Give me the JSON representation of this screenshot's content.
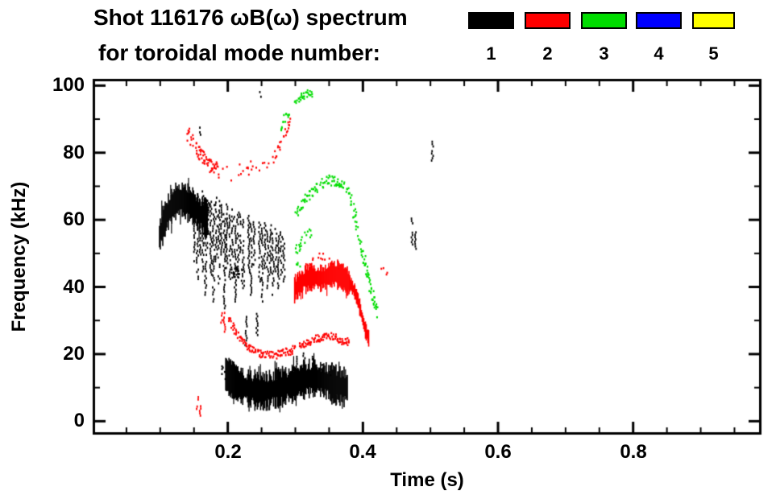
{
  "header": {
    "title_line1": "Shot 116176 ωB(ω) spectrum",
    "title_line2": "for toroidal mode number:"
  },
  "axes": {
    "xlabel": "Time (s)",
    "ylabel": "Frequency (kHz)",
    "xticks": [
      "0.2",
      "0.4",
      "0.6",
      "0.8"
    ],
    "yticks": [
      "100",
      "80",
      "60",
      "40",
      "20",
      "0"
    ]
  },
  "chart_data": {
    "type": "scatter",
    "title": "Shot 116176 ωB(ω) spectrum",
    "subtitle": "for toroidal mode number:",
    "xlabel": "Time (s)",
    "ylabel": "Frequency (kHz)",
    "xlim": [
      0.0,
      0.99
    ],
    "ylim": [
      -4,
      102
    ],
    "xticks": [
      0.2,
      0.4,
      0.6,
      0.8
    ],
    "xminor": 0.05,
    "yticks": [
      0,
      20,
      40,
      60,
      80,
      100
    ],
    "yminor": 10,
    "grid": false,
    "legend_position": "top-right",
    "legend": [
      {
        "label": "1",
        "color": "#000000"
      },
      {
        "label": "2",
        "color": "#ff0000"
      },
      {
        "label": "3",
        "color": "#00dd00"
      },
      {
        "label": "4",
        "color": "#0000ff"
      },
      {
        "label": "5",
        "color": "#ffff00"
      }
    ],
    "series": [
      {
        "mode": 1,
        "color": "#000000",
        "traces": [
          {
            "kind": "band",
            "halfwidth": 4.2,
            "points": [
              [
                0.098,
                55
              ],
              [
                0.104,
                59
              ],
              [
                0.11,
                62
              ],
              [
                0.116,
                64
              ],
              [
                0.124,
                66
              ],
              [
                0.132,
                66
              ],
              [
                0.14,
                65
              ],
              [
                0.148,
                64
              ],
              [
                0.156,
                62
              ],
              [
                0.164,
                61
              ],
              [
                0.17,
                60
              ]
            ]
          },
          {
            "kind": "vlines",
            "lines": [
              [
                0.15,
                67,
                48
              ],
              [
                0.154,
                68,
                42
              ],
              [
                0.158,
                66,
                50
              ],
              [
                0.162,
                69,
                45
              ],
              [
                0.166,
                67,
                38
              ],
              [
                0.17,
                68,
                52
              ],
              [
                0.174,
                66,
                44
              ],
              [
                0.178,
                65,
                36
              ],
              [
                0.182,
                67,
                48
              ],
              [
                0.186,
                66,
                40
              ],
              [
                0.19,
                65,
                50
              ],
              [
                0.194,
                64,
                34
              ],
              [
                0.198,
                65,
                46
              ],
              [
                0.202,
                63,
                42
              ],
              [
                0.206,
                64,
                48
              ],
              [
                0.21,
                62,
                36
              ],
              [
                0.214,
                63,
                45
              ],
              [
                0.218,
                62,
                50
              ],
              [
                0.222,
                61,
                40
              ],
              [
                0.226,
                32,
                23
              ],
              [
                0.23,
                62,
                44
              ],
              [
                0.234,
                60,
                38
              ],
              [
                0.238,
                61,
                47
              ],
              [
                0.242,
                33,
                26
              ],
              [
                0.246,
                60,
                42
              ],
              [
                0.25,
                59,
                36
              ],
              [
                0.254,
                60,
                46
              ],
              [
                0.258,
                58,
                40
              ],
              [
                0.262,
                59,
                44
              ],
              [
                0.266,
                57,
                38
              ],
              [
                0.27,
                58,
                45
              ],
              [
                0.274,
                56,
                40
              ],
              [
                0.278,
                57,
                44
              ],
              [
                0.282,
                55,
                42
              ]
            ]
          },
          {
            "kind": "speckle",
            "halfwidth": 2,
            "density": 3,
            "gap": 0.1,
            "points": [
              [
                0.205,
                45
              ],
              [
                0.212,
                45
              ],
              [
                0.22,
                44
              ]
            ]
          },
          {
            "kind": "band",
            "halfwidth": 4.3,
            "points": [
              [
                0.196,
                14
              ],
              [
                0.205,
                12.5
              ],
              [
                0.215,
                11
              ],
              [
                0.225,
                10
              ],
              [
                0.235,
                9.5
              ],
              [
                0.245,
                9
              ],
              [
                0.255,
                9
              ],
              [
                0.265,
                9.5
              ],
              [
                0.275,
                10
              ],
              [
                0.285,
                10.5
              ],
              [
                0.295,
                11
              ],
              [
                0.305,
                12
              ],
              [
                0.315,
                12.5
              ],
              [
                0.325,
                13
              ],
              [
                0.335,
                12.5
              ],
              [
                0.345,
                12
              ],
              [
                0.355,
                11
              ],
              [
                0.365,
                10.5
              ],
              [
                0.376,
                10
              ]
            ]
          },
          {
            "kind": "vlines",
            "lines": [
              [
                0.3,
                20,
                16
              ],
              [
                0.312,
                21,
                17
              ],
              [
                0.324,
                20,
                16
              ],
              [
                0.338,
                19,
                15
              ],
              [
                0.352,
                18,
                14
              ]
            ]
          },
          {
            "kind": "speckle",
            "halfwidth": 2,
            "density": 2,
            "gap": 0.3,
            "points": [
              [
                0.19,
                15
              ],
              [
                0.198,
                14
              ]
            ]
          },
          {
            "kind": "vlines",
            "lines": [
              [
                0.158,
                88,
                85
              ],
              [
                0.247,
                99,
                97
              ],
              [
                0.472,
                62,
                53
              ],
              [
                0.477,
                57,
                51
              ],
              [
                0.502,
                84,
                78
              ]
            ]
          }
        ]
      },
      {
        "mode": 2,
        "color": "#ff0000",
        "traces": [
          {
            "kind": "speckle",
            "halfwidth": 2.2,
            "density": 3,
            "gap": 0.15,
            "points": [
              [
                0.14,
                86
              ],
              [
                0.146,
                84
              ],
              [
                0.152,
                82
              ],
              [
                0.158,
                80
              ],
              [
                0.165,
                78
              ],
              [
                0.172,
                76.5
              ],
              [
                0.18,
                75.5
              ],
              [
                0.186,
                75
              ]
            ]
          },
          {
            "kind": "speckle",
            "halfwidth": 2.2,
            "density": 1,
            "gap": 0.6,
            "points": [
              [
                0.186,
                75
              ],
              [
                0.2,
                74
              ],
              [
                0.212,
                74.5
              ],
              [
                0.224,
                75.5
              ],
              [
                0.236,
                76
              ],
              [
                0.248,
                76.5
              ],
              [
                0.26,
                77
              ]
            ]
          },
          {
            "kind": "speckle",
            "halfwidth": 1.3,
            "density": 2,
            "gap": 0.3,
            "points": [
              [
                0.266,
                78
              ],
              [
                0.272,
                81
              ],
              [
                0.279,
                84
              ],
              [
                0.286,
                87
              ],
              [
                0.292,
                90
              ]
            ]
          },
          {
            "kind": "band",
            "halfwidth": 3.2,
            "points": [
              [
                0.298,
                39
              ],
              [
                0.305,
                41
              ],
              [
                0.315,
                42.5
              ],
              [
                0.325,
                43
              ],
              [
                0.335,
                42.5
              ],
              [
                0.345,
                43
              ],
              [
                0.355,
                44
              ],
              [
                0.365,
                43.5
              ],
              [
                0.372,
                42.5
              ],
              [
                0.38,
                41
              ]
            ]
          },
          {
            "kind": "band",
            "halfwidth": 1.8,
            "points": [
              [
                0.38,
                41
              ],
              [
                0.386,
                39
              ],
              [
                0.392,
                36
              ],
              [
                0.398,
                31
              ],
              [
                0.403,
                27
              ],
              [
                0.408,
                24.5
              ]
            ]
          },
          {
            "kind": "speckle",
            "halfwidth": 1.5,
            "density": 1,
            "gap": 0.45,
            "points": [
              [
                0.315,
                47
              ],
              [
                0.325,
                48.5
              ],
              [
                0.335,
                49
              ],
              [
                0.345,
                49
              ],
              [
                0.355,
                48
              ],
              [
                0.365,
                47
              ]
            ]
          },
          {
            "kind": "speckle",
            "halfwidth": 1.1,
            "density": 2,
            "gap": 0.15,
            "points": [
              [
                0.2,
                31
              ],
              [
                0.21,
                27
              ],
              [
                0.22,
                24
              ],
              [
                0.23,
                22
              ],
              [
                0.24,
                21
              ],
              [
                0.25,
                20
              ],
              [
                0.26,
                20
              ],
              [
                0.27,
                20
              ],
              [
                0.28,
                21
              ],
              [
                0.29,
                21
              ],
              [
                0.3,
                22
              ],
              [
                0.31,
                23
              ],
              [
                0.32,
                24
              ],
              [
                0.33,
                25
              ],
              [
                0.34,
                25
              ],
              [
                0.35,
                26
              ],
              [
                0.36,
                25
              ],
              [
                0.37,
                24
              ],
              [
                0.38,
                24
              ]
            ]
          },
          {
            "kind": "vlines",
            "lines": [
              [
                0.19,
                35,
                29
              ],
              [
                0.194,
                33,
                27
              ],
              [
                0.154,
                8,
                4
              ],
              [
                0.158,
                6,
                2
              ]
            ]
          },
          {
            "kind": "speckle",
            "halfwidth": 1,
            "density": 1,
            "gap": 0.5,
            "points": [
              [
                0.424,
                45.5
              ],
              [
                0.43,
                45
              ],
              [
                0.436,
                44.5
              ]
            ]
          }
        ]
      },
      {
        "mode": 3,
        "color": "#00dd00",
        "traces": [
          {
            "kind": "speckle",
            "halfwidth": 1.2,
            "density": 2,
            "gap": 0.4,
            "points": [
              [
                0.274,
                86
              ],
              [
                0.282,
                90
              ],
              [
                0.29,
                93
              ]
            ]
          },
          {
            "kind": "speckle",
            "halfwidth": 1.2,
            "density": 2,
            "gap": 0.35,
            "points": [
              [
                0.298,
                95
              ],
              [
                0.308,
                97
              ],
              [
                0.318,
                98
              ],
              [
                0.326,
                97
              ]
            ]
          },
          {
            "kind": "speckle",
            "halfwidth": 1.6,
            "density": 2,
            "gap": 0.15,
            "points": [
              [
                0.3,
                62
              ],
              [
                0.308,
                65
              ],
              [
                0.316,
                67
              ],
              [
                0.326,
                69
              ],
              [
                0.336,
                71
              ],
              [
                0.348,
                72
              ],
              [
                0.36,
                72
              ],
              [
                0.372,
                70
              ],
              [
                0.38,
                67
              ],
              [
                0.385,
                63
              ]
            ]
          },
          {
            "kind": "speckle",
            "halfwidth": 2.2,
            "density": 3,
            "gap": 0.1,
            "points": [
              [
                0.385,
                63
              ],
              [
                0.39,
                59
              ],
              [
                0.395,
                54
              ],
              [
                0.4,
                49
              ],
              [
                0.405,
                44
              ],
              [
                0.41,
                40
              ],
              [
                0.415,
                36
              ],
              [
                0.42,
                33
              ]
            ]
          },
          {
            "kind": "speckle",
            "halfwidth": 1.8,
            "density": 2,
            "gap": 0.3,
            "points": [
              [
                0.298,
                50
              ],
              [
                0.306,
                53
              ],
              [
                0.314,
                55
              ],
              [
                0.322,
                56
              ]
            ]
          },
          {
            "kind": "speckle",
            "halfwidth": 1.2,
            "density": 1,
            "gap": 0.5,
            "points": [
              [
                0.3,
                46
              ],
              [
                0.306,
                47
              ]
            ]
          }
        ]
      },
      {
        "mode": 4,
        "color": "#0000ff",
        "traces": []
      },
      {
        "mode": 5,
        "color": "#ffff00",
        "traces": []
      }
    ]
  }
}
